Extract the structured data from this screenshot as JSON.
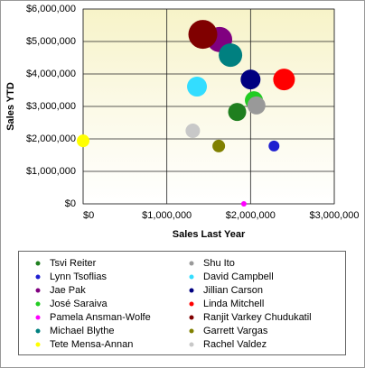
{
  "chart_data": {
    "type": "bubble",
    "x_label": "Sales Last Year",
    "y_label": "Sales YTD",
    "xlim": [
      0,
      3000000
    ],
    "ylim": [
      0,
      6000000
    ],
    "xticks": [
      {
        "value": 0,
        "label": "$0"
      },
      {
        "value": 1000000,
        "label": "$1,000,000"
      },
      {
        "value": 2000000,
        "label": "$2,000,000"
      },
      {
        "value": 3000000,
        "label": "$3,000,000"
      }
    ],
    "yticks": [
      {
        "value": 0,
        "label": "$0"
      },
      {
        "value": 1000000,
        "label": "$1,000,000"
      },
      {
        "value": 2000000,
        "label": "$2,000,000"
      },
      {
        "value": 3000000,
        "label": "$3,000,000"
      },
      {
        "value": 4000000,
        "label": "$4,000,000"
      },
      {
        "value": 5000000,
        "label": "$5,000,000"
      },
      {
        "value": 6000000,
        "label": "$6,000,000"
      }
    ],
    "grid": true,
    "series": [
      {
        "name": "Tsvi Reiter",
        "color": "#1f7f1f",
        "x": [
          1840000
        ],
        "values": [
          2830000
        ],
        "size": [
          10
        ]
      },
      {
        "name": "Lynn Tsoflias",
        "color": "#1f1fd0",
        "x": [
          2280000
        ],
        "values": [
          1780000
        ],
        "size": [
          6
        ]
      },
      {
        "name": "Jae Pak",
        "color": "#800080",
        "x": [
          1630000
        ],
        "values": [
          5060000
        ],
        "size": [
          14
        ]
      },
      {
        "name": "José Saraiva",
        "color": "#22cc22",
        "x": [
          2040000
        ],
        "values": [
          3190000
        ],
        "size": [
          10
        ]
      },
      {
        "name": "Pamela Ansman-Wolfe",
        "color": "#ff00ff",
        "x": [
          1920000
        ],
        "values": [
          0
        ],
        "size": [
          3
        ]
      },
      {
        "name": "Michael Blythe",
        "color": "#008080",
        "x": [
          1760000
        ],
        "values": [
          4580000
        ],
        "size": [
          13
        ]
      },
      {
        "name": "Tete Mensa-Annan",
        "color": "#ffff00",
        "x": [
          0
        ],
        "values": [
          1940000
        ],
        "size": [
          7
        ]
      },
      {
        "name": "Shu Ito",
        "color": "#999999",
        "x": [
          2070000
        ],
        "values": [
          3030000
        ],
        "size": [
          10
        ]
      },
      {
        "name": "David Campbell",
        "color": "#33ddff",
        "x": [
          1360000
        ],
        "values": [
          3610000
        ],
        "size": [
          11
        ]
      },
      {
        "name": "Jillian Carson",
        "color": "#000080",
        "x": [
          2000000
        ],
        "values": [
          3830000
        ],
        "size": [
          11
        ]
      },
      {
        "name": "Linda Mitchell",
        "color": "#ff0000",
        "x": [
          2400000
        ],
        "values": [
          3830000
        ],
        "size": [
          12
        ]
      },
      {
        "name": "Ranjit Varkey Chudukatil",
        "color": "#800000",
        "x": [
          1430000
        ],
        "values": [
          5220000
        ],
        "size": [
          16
        ]
      },
      {
        "name": "Garrett Vargas",
        "color": "#808000",
        "x": [
          1620000
        ],
        "values": [
          1780000
        ],
        "size": [
          7
        ]
      },
      {
        "name": "Rachel Valdez",
        "color": "#c8c8c8",
        "x": [
          1310000
        ],
        "values": [
          2250000
        ],
        "size": [
          8
        ]
      }
    ]
  }
}
